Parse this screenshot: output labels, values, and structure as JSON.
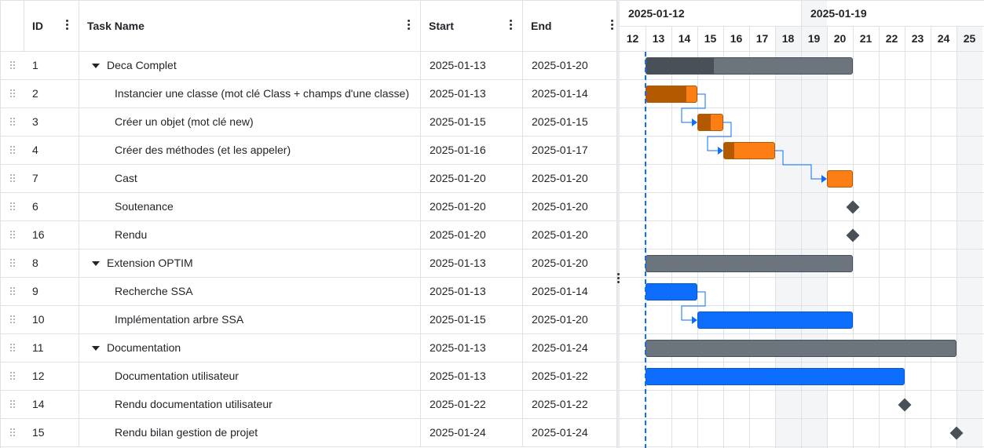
{
  "grid": {
    "columns": [
      {
        "key": "id",
        "label": "ID"
      },
      {
        "key": "name",
        "label": "Task Name"
      },
      {
        "key": "start",
        "label": "Start"
      },
      {
        "key": "end",
        "label": "End"
      }
    ],
    "rows": [
      {
        "id": "1",
        "name": "Deca Complet",
        "start": "2025-01-13",
        "end": "2025-01-20",
        "parent": true
      },
      {
        "id": "2",
        "name": "Instancier une classe (mot clé Class + champs d'une classe)",
        "start": "2025-01-13",
        "end": "2025-01-14"
      },
      {
        "id": "3",
        "name": "Créer un objet (mot clé new)",
        "start": "2025-01-15",
        "end": "2025-01-15"
      },
      {
        "id": "4",
        "name": "Créer des méthodes (et les appeler)",
        "start": "2025-01-16",
        "end": "2025-01-17"
      },
      {
        "id": "7",
        "name": "Cast",
        "start": "2025-01-20",
        "end": "2025-01-20"
      },
      {
        "id": "6",
        "name": "Soutenance",
        "start": "2025-01-20",
        "end": "2025-01-20"
      },
      {
        "id": "16",
        "name": "Rendu",
        "start": "2025-01-20",
        "end": "2025-01-20"
      },
      {
        "id": "8",
        "name": "Extension OPTIM",
        "start": "2025-01-13",
        "end": "2025-01-20",
        "parent": true
      },
      {
        "id": "9",
        "name": "Recherche SSA",
        "start": "2025-01-13",
        "end": "2025-01-14"
      },
      {
        "id": "10",
        "name": "Implémentation arbre SSA",
        "start": "2025-01-15",
        "end": "2025-01-20"
      },
      {
        "id": "11",
        "name": "Documentation",
        "start": "2025-01-13",
        "end": "2025-01-24",
        "parent": true
      },
      {
        "id": "12",
        "name": "Documentation utilisateur",
        "start": "2025-01-13",
        "end": "2025-01-22"
      },
      {
        "id": "14",
        "name": "Rendu documentation utilisateur",
        "start": "2025-01-22",
        "end": "2025-01-22"
      },
      {
        "id": "15",
        "name": "Rendu bilan gestion de projet",
        "start": "2025-01-24",
        "end": "2025-01-24"
      }
    ]
  },
  "timeline": {
    "weeks": [
      "2025-01-12",
      "2025-01-19"
    ],
    "days": [
      "12",
      "13",
      "14",
      "15",
      "16",
      "17",
      "18",
      "19",
      "20",
      "21",
      "22",
      "23",
      "24",
      "25"
    ],
    "weekend_days": [
      "18",
      "19",
      "25"
    ],
    "today_day": "13",
    "items": [
      {
        "type": "bar",
        "start": 13,
        "end": 20,
        "progress": 0.33,
        "color": "#6c757d",
        "prog_color": "#495057"
      },
      {
        "type": "bar",
        "start": 13,
        "end": 14,
        "progress": 0.8,
        "color": "#fd7e14",
        "prog_color": "#b35900"
      },
      {
        "type": "bar",
        "start": 15,
        "end": 15,
        "progress": 0.5,
        "color": "#fd7e14",
        "prog_color": "#b35900"
      },
      {
        "type": "bar",
        "start": 16,
        "end": 17,
        "progress": 0.2,
        "color": "#fd7e14",
        "prog_color": "#b35900"
      },
      {
        "type": "bar",
        "start": 20,
        "end": 20,
        "progress": 0,
        "color": "#fd7e14",
        "prog_color": "#b35900"
      },
      {
        "type": "milestone",
        "day": 21
      },
      {
        "type": "milestone",
        "day": 21
      },
      {
        "type": "bar",
        "start": 13,
        "end": 20,
        "progress": 0,
        "color": "#6c757d",
        "prog_color": "#495057"
      },
      {
        "type": "bar",
        "start": 13,
        "end": 14,
        "progress": 0,
        "color": "#0d6efd",
        "prog_color": "#0a58ca"
      },
      {
        "type": "bar",
        "start": 15,
        "end": 20,
        "progress": 0,
        "color": "#0d6efd",
        "prog_color": "#0a58ca"
      },
      {
        "type": "bar",
        "start": 13,
        "end": 24,
        "progress": 0,
        "color": "#6c757d",
        "prog_color": "#495057"
      },
      {
        "type": "bar",
        "start": 13,
        "end": 22,
        "progress": 0,
        "color": "#0d6efd",
        "prog_color": "#0a58ca"
      },
      {
        "type": "milestone",
        "day": 23
      },
      {
        "type": "milestone",
        "day": 25
      }
    ],
    "links": [
      {
        "from": 1,
        "to": 2
      },
      {
        "from": 2,
        "to": 3
      },
      {
        "from": 3,
        "to": 4
      },
      {
        "from": 8,
        "to": 9
      }
    ],
    "colors": {
      "link": "#0d6efd",
      "milestone": "#495057",
      "today": "#0d6efd"
    }
  }
}
